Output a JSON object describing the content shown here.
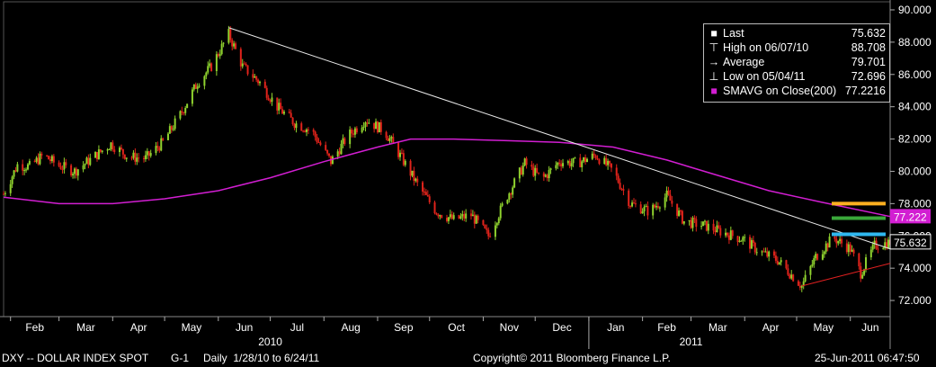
{
  "legend": {
    "last_label": "Last",
    "last_value": "75.632",
    "high_label": "High on 06/07/10",
    "high_value": "88.708",
    "avg_label": "Average",
    "avg_value": "79.701",
    "low_label": "Low on 05/04/11",
    "low_value": "72.696",
    "sma_label": "SMAVG on Close(200)",
    "sma_value": "77.2216"
  },
  "tags": {
    "last": "75.632",
    "sma": "77.222"
  },
  "footer": {
    "ticker": "DXY -- DOLLAR INDEX SPOT",
    "chart_id": "G-1",
    "range": "Daily  1/28/10 to 6/24/11",
    "copyright": "Copyright© 2011 Bloomberg Finance L.P.",
    "timestamp": "25-Jun-2011 06:47:50"
  },
  "colors": {
    "up": "#8fd22e",
    "down": "#e0231b",
    "sma": "#d21ed2",
    "trend": "#e8e8e8",
    "support": "#e02020",
    "orange": "#ffb020",
    "green": "#3aa83a",
    "cyan": "#2fb8f0"
  },
  "chart_data": {
    "type": "candlestick",
    "title": "",
    "xlabel": "",
    "ylabel": "",
    "ylim": [
      71,
      90.5
    ],
    "yticks": [
      72,
      74,
      76,
      78,
      80,
      82,
      84,
      86,
      88,
      90
    ],
    "ytick_labels": [
      "72.000",
      "74.000",
      "76.000",
      "78.000",
      "80.000",
      "82.000",
      "84.000",
      "86.000",
      "88.000",
      "90.000"
    ],
    "date_range": [
      "2010-01-28",
      "2011-06-24"
    ],
    "xtick_labels": [
      {
        "date": "2010-02",
        "label": "Feb"
      },
      {
        "date": "2010-03",
        "label": "Mar"
      },
      {
        "date": "2010-04",
        "label": "Apr"
      },
      {
        "date": "2010-05",
        "label": "May"
      },
      {
        "date": "2010-06",
        "label": "Jun"
      },
      {
        "date": "2010-07",
        "label": "Jul"
      },
      {
        "date": "2010-08",
        "label": "Aug"
      },
      {
        "date": "2010-09",
        "label": "Sep"
      },
      {
        "date": "2010-10",
        "label": "Oct"
      },
      {
        "date": "2010-11",
        "label": "Nov"
      },
      {
        "date": "2010-12",
        "label": "Dec"
      },
      {
        "date": "2011-01",
        "label": "Jan"
      },
      {
        "date": "2011-02",
        "label": "Feb"
      },
      {
        "date": "2011-03",
        "label": "Mar"
      },
      {
        "date": "2011-04",
        "label": "Apr"
      },
      {
        "date": "2011-05",
        "label": "May"
      },
      {
        "date": "2011-06",
        "label": "Jun"
      }
    ],
    "year_labels": [
      {
        "date": "2010-07",
        "label": "2010"
      },
      {
        "date": "2011-03",
        "label": "2011"
      }
    ],
    "close_series": {
      "name": "DXY",
      "points": [
        [
          "2010-01-28",
          78.6
        ],
        [
          "2010-02-05",
          80.4
        ],
        [
          "2010-02-12",
          80.3
        ],
        [
          "2010-02-20",
          81.0
        ],
        [
          "2010-02-28",
          80.4
        ],
        [
          "2010-03-10",
          80.0
        ],
        [
          "2010-03-20",
          80.8
        ],
        [
          "2010-03-31",
          81.7
        ],
        [
          "2010-04-10",
          80.9
        ],
        [
          "2010-04-20",
          80.8
        ],
        [
          "2010-04-30",
          81.8
        ],
        [
          "2010-05-10",
          83.5
        ],
        [
          "2010-05-20",
          85.5
        ],
        [
          "2010-05-28",
          86.5
        ],
        [
          "2010-06-07",
          88.5
        ],
        [
          "2010-06-15",
          86.5
        ],
        [
          "2010-06-25",
          85.5
        ],
        [
          "2010-07-05",
          84.0
        ],
        [
          "2010-07-15",
          83.0
        ],
        [
          "2010-07-25",
          82.5
        ],
        [
          "2010-08-05",
          80.6
        ],
        [
          "2010-08-15",
          82.2
        ],
        [
          "2010-08-25",
          83.2
        ],
        [
          "2010-09-05",
          82.5
        ],
        [
          "2010-09-15",
          80.8
        ],
        [
          "2010-09-25",
          79.0
        ],
        [
          "2010-10-05",
          77.5
        ],
        [
          "2010-10-15",
          77.0
        ],
        [
          "2010-10-25",
          77.3
        ],
        [
          "2010-11-04",
          76.0
        ],
        [
          "2010-11-15",
          78.5
        ],
        [
          "2010-11-25",
          80.5
        ],
        [
          "2010-12-05",
          79.5
        ],
        [
          "2010-12-15",
          80.6
        ],
        [
          "2010-12-25",
          80.5
        ],
        [
          "2011-01-05",
          81.0
        ],
        [
          "2011-01-15",
          80.0
        ],
        [
          "2011-01-25",
          78.0
        ],
        [
          "2011-02-05",
          77.5
        ],
        [
          "2011-02-15",
          78.5
        ],
        [
          "2011-02-25",
          76.9
        ],
        [
          "2011-03-10",
          76.6
        ],
        [
          "2011-03-20",
          76.2
        ],
        [
          "2011-03-31",
          75.8
        ],
        [
          "2011-04-10",
          75.0
        ],
        [
          "2011-04-20",
          74.5
        ],
        [
          "2011-05-04",
          72.9
        ],
        [
          "2011-05-12",
          74.7
        ],
        [
          "2011-05-22",
          75.9
        ],
        [
          "2011-06-01",
          75.2
        ],
        [
          "2011-06-07",
          73.7
        ],
        [
          "2011-06-15",
          75.4
        ],
        [
          "2011-06-24",
          75.6
        ]
      ]
    },
    "sma_series": {
      "name": "SMAVG on Close(200)",
      "points": [
        [
          "2010-01-28",
          78.4
        ],
        [
          "2010-03-01",
          78.0
        ],
        [
          "2010-04-01",
          78.0
        ],
        [
          "2010-05-01",
          78.3
        ],
        [
          "2010-06-01",
          78.8
        ],
        [
          "2010-07-01",
          79.6
        ],
        [
          "2010-08-01",
          80.6
        ],
        [
          "2010-09-01",
          81.5
        ],
        [
          "2010-09-20",
          82.0
        ],
        [
          "2010-10-15",
          82.0
        ],
        [
          "2010-11-15",
          81.9
        ],
        [
          "2010-12-15",
          81.8
        ],
        [
          "2011-01-15",
          81.5
        ],
        [
          "2011-02-15",
          80.7
        ],
        [
          "2011-03-15",
          79.8
        ],
        [
          "2011-04-15",
          78.8
        ],
        [
          "2011-05-15",
          78.1
        ],
        [
          "2011-06-24",
          77.2
        ]
      ]
    },
    "trendlines": [
      {
        "from": [
          "2010-06-07",
          88.9
        ],
        "to": [
          "2011-06-24",
          75.2
        ]
      },
      {
        "from": [
          "2011-05-04",
          72.9
        ],
        "to": [
          "2011-06-24",
          74.3
        ]
      }
    ],
    "levels": [
      78.0,
      77.1,
      76.1
    ]
  }
}
